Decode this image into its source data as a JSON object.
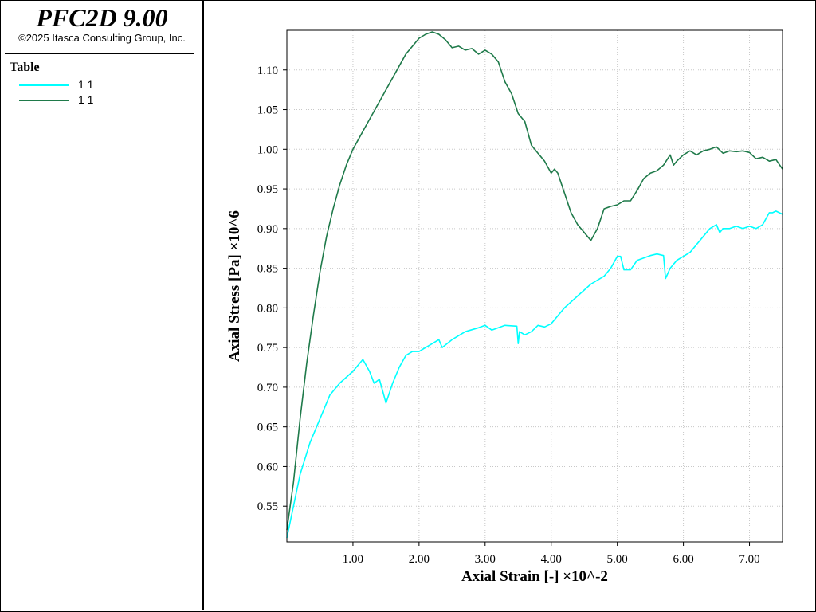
{
  "app": {
    "title": "PFC2D 9.00",
    "copyright": "©2025 Itasca Consulting Group, Inc."
  },
  "legend": {
    "title": "Table",
    "items": [
      {
        "label": "1 1",
        "color": "#00ffff"
      },
      {
        "label": "1 1",
        "color": "#1f7a4a"
      }
    ]
  },
  "chart_data": {
    "type": "line",
    "xlabel": "Axial Strain [-] ×10^-2",
    "ylabel": "Axial Stress [Pa] ×10^6",
    "xlim": [
      0,
      7.5
    ],
    "ylim": [
      0.505,
      1.15
    ],
    "grid": true,
    "x_ticks": [
      1.0,
      2.0,
      3.0,
      4.0,
      5.0,
      6.0,
      7.0
    ],
    "x_tick_labels": [
      "1.00",
      "2.00",
      "3.00",
      "4.00",
      "5.00",
      "6.00",
      "7.00"
    ],
    "y_ticks": [
      0.55,
      0.6,
      0.65,
      0.7,
      0.75,
      0.8,
      0.85,
      0.9,
      0.95,
      1.0,
      1.05,
      1.1
    ],
    "y_tick_labels": [
      "0.55",
      "0.60",
      "0.65",
      "0.70",
      "0.75",
      "0.80",
      "0.85",
      "0.90",
      "0.95",
      "1.00",
      "1.05",
      "1.10"
    ],
    "series": [
      {
        "name": "1 1",
        "color": "#00ffff",
        "x": [
          0,
          0.1,
          0.2,
          0.35,
          0.5,
          0.65,
          0.8,
          1.0,
          1.15,
          1.25,
          1.32,
          1.4,
          1.45,
          1.5,
          1.6,
          1.7,
          1.8,
          1.9,
          2.0,
          2.1,
          2.2,
          2.3,
          2.35,
          2.5,
          2.7,
          2.9,
          3.0,
          3.1,
          3.3,
          3.48,
          3.5,
          3.52,
          3.6,
          3.7,
          3.8,
          3.9,
          4.0,
          4.2,
          4.4,
          4.6,
          4.8,
          4.9,
          5.0,
          5.05,
          5.1,
          5.2,
          5.3,
          5.4,
          5.5,
          5.6,
          5.7,
          5.73,
          5.8,
          5.9,
          6.0,
          6.1,
          6.2,
          6.3,
          6.4,
          6.5,
          6.55,
          6.6,
          6.7,
          6.8,
          6.9,
          7.0,
          7.1,
          7.2,
          7.3,
          7.35,
          7.4,
          7.5
        ],
        "y": [
          0.51,
          0.55,
          0.59,
          0.63,
          0.66,
          0.69,
          0.705,
          0.72,
          0.735,
          0.72,
          0.705,
          0.71,
          0.695,
          0.68,
          0.705,
          0.725,
          0.74,
          0.745,
          0.745,
          0.75,
          0.755,
          0.76,
          0.75,
          0.76,
          0.77,
          0.775,
          0.778,
          0.772,
          0.778,
          0.777,
          0.755,
          0.77,
          0.766,
          0.77,
          0.778,
          0.776,
          0.78,
          0.8,
          0.815,
          0.83,
          0.84,
          0.85,
          0.865,
          0.865,
          0.848,
          0.848,
          0.86,
          0.863,
          0.866,
          0.868,
          0.866,
          0.837,
          0.85,
          0.86,
          0.865,
          0.87,
          0.88,
          0.89,
          0.9,
          0.905,
          0.895,
          0.9,
          0.9,
          0.903,
          0.9,
          0.903,
          0.9,
          0.905,
          0.92,
          0.92,
          0.922,
          0.918
        ]
      },
      {
        "name": "1 1",
        "color": "#1f7a4a",
        "x": [
          0,
          0.1,
          0.2,
          0.3,
          0.4,
          0.5,
          0.6,
          0.7,
          0.8,
          0.9,
          1.0,
          1.2,
          1.4,
          1.6,
          1.8,
          2.0,
          2.1,
          2.2,
          2.3,
          2.4,
          2.5,
          2.6,
          2.7,
          2.8,
          2.9,
          3.0,
          3.1,
          3.2,
          3.3,
          3.4,
          3.5,
          3.6,
          3.7,
          3.8,
          3.9,
          4.0,
          4.05,
          4.1,
          4.2,
          4.3,
          4.4,
          4.5,
          4.6,
          4.7,
          4.8,
          4.9,
          5.0,
          5.1,
          5.2,
          5.3,
          5.4,
          5.5,
          5.6,
          5.7,
          5.8,
          5.85,
          5.9,
          6.0,
          6.1,
          6.2,
          6.3,
          6.4,
          6.5,
          6.6,
          6.7,
          6.8,
          6.9,
          7.0,
          7.1,
          7.2,
          7.3,
          7.4,
          7.5
        ],
        "y": [
          0.52,
          0.58,
          0.66,
          0.73,
          0.79,
          0.845,
          0.89,
          0.925,
          0.955,
          0.98,
          1.0,
          1.03,
          1.06,
          1.09,
          1.12,
          1.14,
          1.145,
          1.148,
          1.145,
          1.138,
          1.128,
          1.13,
          1.125,
          1.127,
          1.12,
          1.125,
          1.12,
          1.11,
          1.085,
          1.07,
          1.045,
          1.035,
          1.005,
          0.995,
          0.985,
          0.97,
          0.975,
          0.97,
          0.945,
          0.92,
          0.905,
          0.895,
          0.885,
          0.9,
          0.925,
          0.928,
          0.93,
          0.935,
          0.935,
          0.948,
          0.963,
          0.97,
          0.973,
          0.98,
          0.993,
          0.98,
          0.985,
          0.993,
          0.998,
          0.993,
          0.998,
          1.0,
          1.003,
          0.995,
          0.998,
          0.997,
          0.998,
          0.996,
          0.988,
          0.99,
          0.985,
          0.987,
          0.975
        ]
      }
    ]
  }
}
